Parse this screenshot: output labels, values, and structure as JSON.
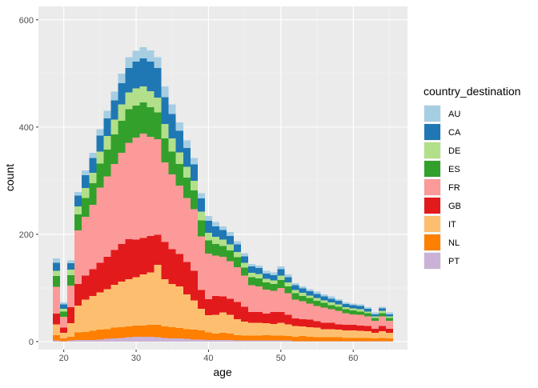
{
  "chart_data": {
    "type": "bar",
    "stacked": true,
    "xlabel": "age",
    "ylabel": "count",
    "xlim": [
      16.5,
      67.5
    ],
    "ylim": [
      -15,
      625
    ],
    "x_ticks": [
      20,
      30,
      40,
      50,
      60
    ],
    "y_ticks": [
      0,
      200,
      400,
      600
    ],
    "x": [
      19,
      20,
      21,
      22,
      23,
      24,
      25,
      26,
      27,
      28,
      29,
      30,
      31,
      32,
      33,
      34,
      35,
      36,
      37,
      38,
      39,
      40,
      41,
      42,
      43,
      44,
      45,
      46,
      47,
      48,
      49,
      50,
      51,
      52,
      53,
      54,
      55,
      56,
      57,
      58,
      59,
      60,
      61,
      62,
      63,
      64,
      65
    ],
    "legend_title": "country_destination",
    "legend_position": "right",
    "series": [
      {
        "name": "PT",
        "color": "#CAB2D6",
        "values": [
          2,
          1,
          2,
          3,
          3,
          3,
          4,
          5,
          6,
          7,
          8,
          9,
          9,
          9,
          8,
          7,
          6,
          6,
          5,
          4,
          4,
          3,
          3,
          3,
          3,
          2,
          2,
          2,
          2,
          2,
          2,
          2,
          2,
          1,
          1,
          1,
          1,
          1,
          1,
          1,
          1,
          1,
          1,
          1,
          1,
          1,
          1
        ]
      },
      {
        "name": "NL",
        "color": "#FF7F00",
        "values": [
          10,
          5,
          7,
          14,
          15,
          17,
          18,
          18,
          20,
          20,
          20,
          21,
          21,
          22,
          23,
          21,
          21,
          19,
          18,
          18,
          17,
          14,
          12,
          13,
          12,
          10,
          9,
          9,
          9,
          10,
          9,
          9,
          8,
          8,
          9,
          8,
          7,
          7,
          7,
          7,
          6,
          6,
          6,
          6,
          5,
          6,
          5
        ]
      },
      {
        "name": "IT",
        "color": "#FDBF6F",
        "values": [
          20,
          10,
          25,
          50,
          60,
          65,
          70,
          75,
          80,
          85,
          88,
          90,
          95,
          98,
          112,
          88,
          80,
          78,
          65,
          55,
          40,
          32,
          35,
          38,
          35,
          30,
          26,
          24,
          24,
          22,
          22,
          24,
          22,
          20,
          18,
          18,
          18,
          15,
          15,
          14,
          14,
          14,
          13,
          12,
          10,
          12,
          10
        ]
      },
      {
        "name": "GB",
        "color": "#E31A1C",
        "values": [
          20,
          10,
          30,
          40,
          45,
          50,
          55,
          60,
          65,
          70,
          75,
          70,
          68,
          68,
          56,
          70,
          65,
          60,
          60,
          55,
          35,
          30,
          35,
          30,
          30,
          32,
          28,
          20,
          20,
          18,
          22,
          20,
          18,
          14,
          14,
          14,
          12,
          12,
          12,
          10,
          10,
          10,
          10,
          10,
          8,
          10,
          8
        ]
      },
      {
        "name": "FR",
        "color": "#FB9A99",
        "values": [
          50,
          20,
          40,
          100,
          110,
          120,
          140,
          150,
          160,
          170,
          180,
          190,
          195,
          185,
          178,
          148,
          140,
          128,
          120,
          115,
          100,
          85,
          75,
          74,
          70,
          65,
          58,
          50,
          48,
          45,
          40,
          45,
          40,
          35,
          33,
          30,
          28,
          28,
          25,
          25,
          22,
          20,
          20,
          18,
          15,
          18,
          15
        ]
      },
      {
        "name": "ES",
        "color": "#33A02C",
        "values": [
          20,
          10,
          20,
          30,
          35,
          40,
          45,
          50,
          55,
          60,
          62,
          60,
          58,
          55,
          50,
          45,
          42,
          40,
          38,
          35,
          30,
          25,
          22,
          20,
          20,
          18,
          15,
          15,
          15,
          13,
          12,
          15,
          13,
          12,
          10,
          10,
          10,
          9,
          8,
          8,
          7,
          7,
          6,
          6,
          5,
          6,
          5
        ]
      },
      {
        "name": "DE",
        "color": "#B2DF8A",
        "values": [
          10,
          5,
          10,
          15,
          18,
          20,
          22,
          25,
          28,
          30,
          32,
          32,
          30,
          30,
          28,
          27,
          25,
          22,
          20,
          18,
          16,
          14,
          13,
          12,
          11,
          10,
          9,
          8,
          8,
          7,
          7,
          8,
          7,
          6,
          6,
          5,
          5,
          5,
          5,
          4,
          4,
          4,
          4,
          3,
          3,
          4,
          3
        ]
      },
      {
        "name": "CA",
        "color": "#1F78B4",
        "values": [
          15,
          8,
          12,
          20,
          24,
          27,
          30,
          33,
          36,
          40,
          45,
          50,
          52,
          55,
          55,
          50,
          45,
          40,
          35,
          30,
          25,
          22,
          20,
          18,
          16,
          14,
          12,
          12,
          11,
          10,
          10,
          12,
          10,
          9,
          8,
          8,
          8,
          7,
          7,
          7,
          6,
          6,
          6,
          5,
          4,
          5,
          4
        ]
      },
      {
        "name": "AU",
        "color": "#A6CEE3",
        "values": [
          8,
          4,
          5,
          7,
          9,
          10,
          12,
          14,
          16,
          18,
          20,
          20,
          21,
          21,
          20,
          20,
          18,
          16,
          14,
          12,
          10,
          9,
          8,
          7,
          7,
          6,
          6,
          5,
          5,
          5,
          5,
          5,
          5,
          4,
          4,
          4,
          4,
          4,
          4,
          3,
          3,
          3,
          3,
          3,
          3,
          3,
          3
        ]
      }
    ]
  }
}
